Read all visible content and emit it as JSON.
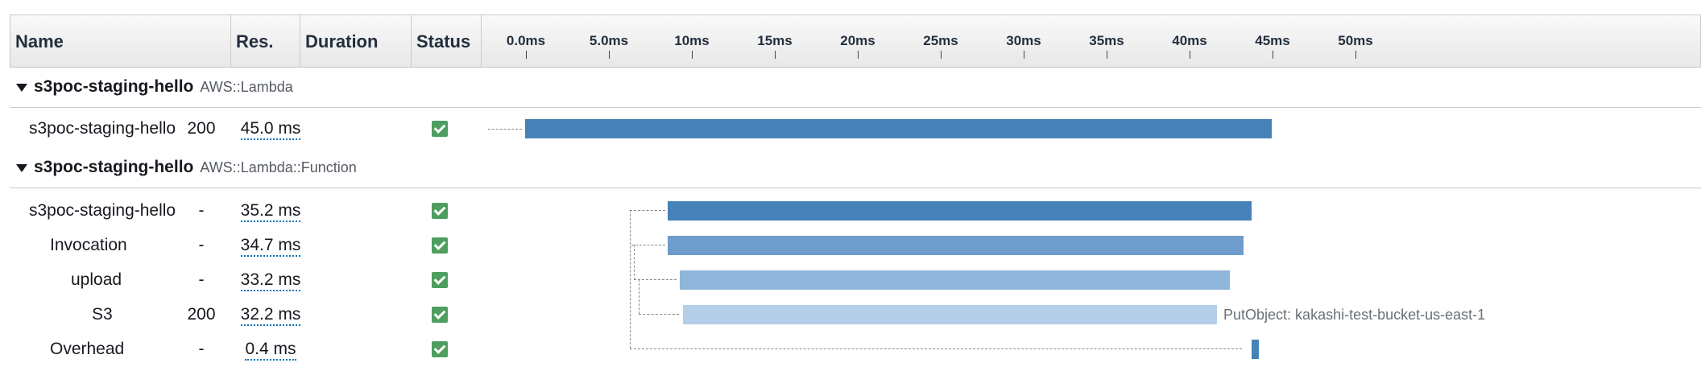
{
  "header": {
    "name": "Name",
    "res": "Res.",
    "duration": "Duration",
    "status": "Status",
    "ticks": [
      "0.0ms",
      "5.0ms",
      "10ms",
      "15ms",
      "20ms",
      "25ms",
      "30ms",
      "35ms",
      "40ms",
      "45ms",
      "50ms"
    ]
  },
  "groups": [
    {
      "name": "s3poc-staging-hello",
      "type": "AWS::Lambda"
    },
    {
      "name": "s3poc-staging-hello",
      "type": "AWS::Lambda::Function"
    }
  ],
  "segments": [
    {
      "name": "s3poc-staging-hello",
      "res": "200",
      "duration": "45.0 ms",
      "status": "ok",
      "start_ms": 0.0,
      "end_ms": 45.0
    },
    {
      "name": "s3poc-staging-hello",
      "res": "-",
      "duration": "35.2 ms",
      "status": "ok",
      "start_ms": 8.6,
      "end_ms": 43.8
    },
    {
      "name": "Invocation",
      "res": "-",
      "duration": "34.7 ms",
      "status": "ok",
      "start_ms": 8.6,
      "end_ms": 43.3
    },
    {
      "name": "upload",
      "res": "-",
      "duration": "33.2 ms",
      "status": "ok",
      "start_ms": 9.3,
      "end_ms": 42.5
    },
    {
      "name": "S3",
      "res": "200",
      "duration": "32.2 ms",
      "status": "ok",
      "start_ms": 9.5,
      "end_ms": 41.7,
      "annotation": "PutObject: kakashi-test-bucket-us-east-1"
    },
    {
      "name": "Overhead",
      "res": "-",
      "duration": "0.4 ms",
      "status": "ok",
      "start_ms": 43.8,
      "end_ms": 44.2
    }
  ],
  "colors": {
    "bar_level_0": "#4682b8",
    "bar_level_1": "#6e9ccc",
    "bar_level_2": "#8fb5da",
    "bar_level_3": "#b4cfe8",
    "status_ok": "#4e9e5f"
  }
}
